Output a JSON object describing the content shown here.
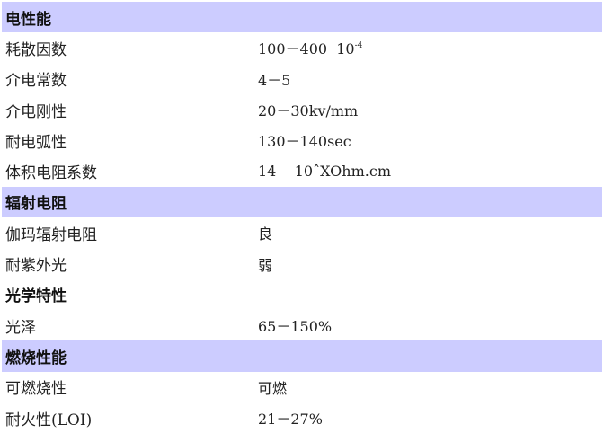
{
  "sections": [
    {
      "title": "电性能",
      "shaded": true,
      "rows": [
        {
          "label": "耗散因数",
          "value": "100－400  10",
          "sup": "-4"
        },
        {
          "label": "介电常数",
          "value": "4－5"
        },
        {
          "label": "介电刚性",
          "value": "20－30kv/mm"
        },
        {
          "label": "耐电弧性",
          "value": "130－140sec"
        },
        {
          "label": "体积电阻系数",
          "value": "14    10ˆXOhm.cm"
        }
      ]
    },
    {
      "title": "辐射电阻",
      "shaded": true,
      "rows": [
        {
          "label": "伽玛辐射电阻",
          "value": "良"
        },
        {
          "label": "耐紫外光",
          "value": "弱"
        }
      ]
    },
    {
      "title": "光学特性",
      "shaded": false,
      "rows": [
        {
          "label": "光泽",
          "value": "65－150%"
        }
      ]
    },
    {
      "title": "燃烧性能",
      "shaded": true,
      "rows": [
        {
          "label": "可燃烧性",
          "value": "可燃"
        },
        {
          "label": "耐火性(LOI)",
          "value": "21－27%"
        }
      ]
    }
  ],
  "colors": {
    "section_header_bg": "#ccccff"
  }
}
